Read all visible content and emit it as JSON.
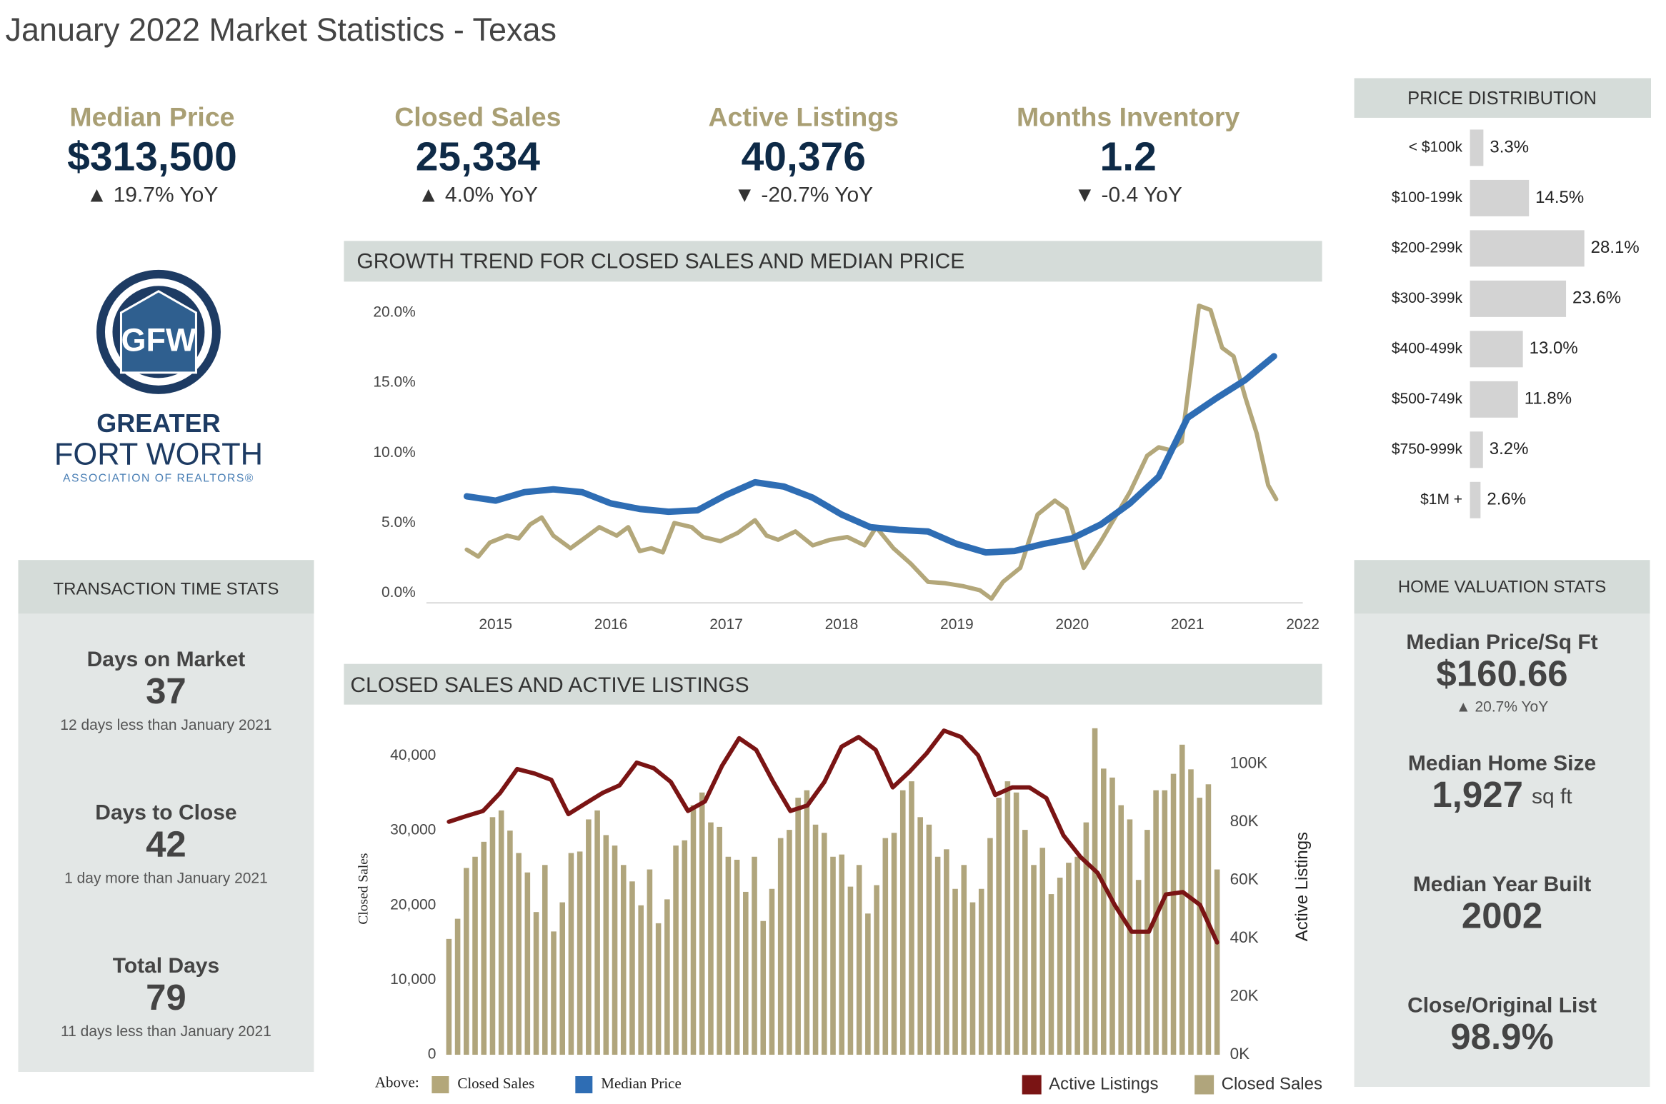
{
  "title": "January 2022 Market Statistics - Texas",
  "kpis": [
    {
      "label": "Median Price",
      "value": "$313,500",
      "change": "▲ 19.7% YoY"
    },
    {
      "label": "Closed Sales",
      "value": "25,334",
      "change": "▲ 4.0% YoY"
    },
    {
      "label": "Active Listings",
      "value": "40,376",
      "change": "▼ -20.7% YoY"
    },
    {
      "label": "Months Inventory",
      "value": "1.2",
      "change": "▼ -0.4 YoY"
    }
  ],
  "logo": {
    "mark": "GFW",
    "line1": "GREATER",
    "line2": "FORT WORTH",
    "line3": "ASSOCIATION OF REALTORS®"
  },
  "price_distribution": {
    "title": "PRICE DISTRIBUTION",
    "color": "#d3d3d3",
    "categories": [
      "< $100k",
      "$100-199k",
      "$200-299k",
      "$300-399k",
      "$400-499k",
      "$500-749k",
      "$750-999k",
      "$1M +"
    ],
    "values": [
      3.3,
      14.5,
      28.1,
      23.6,
      13.0,
      11.8,
      3.2,
      2.6
    ],
    "value_labels": [
      "3.3%",
      "14.5%",
      "28.1%",
      "23.6%",
      "13.0%",
      "11.8%",
      "3.2%",
      "2.6%"
    ]
  },
  "transaction_time_stats": {
    "title": "TRANSACTION TIME STATS",
    "items": [
      {
        "label": "Days on Market",
        "value": "37",
        "note": "12 days less than January 2021"
      },
      {
        "label": "Days to Close",
        "value": "42",
        "note": "1 day more than January 2021"
      },
      {
        "label": "Total Days",
        "value": "79",
        "note": "11 days less than January 2021"
      }
    ]
  },
  "home_valuation_stats": {
    "title": "HOME VALUATION STATS",
    "items": [
      {
        "label": "Median Price/Sq Ft",
        "value": "$160.66",
        "note": "▲ 20.7% YoY"
      },
      {
        "label": "Median Home Size",
        "value": "1,927",
        "unit": "sq ft"
      },
      {
        "label": "Median Year Built",
        "value": "2002"
      },
      {
        "label": "Close/Original List",
        "value": "98.9%"
      }
    ]
  },
  "chart_data": [
    {
      "type": "line",
      "title": "GROWTH TREND FOR CLOSED SALES AND MEDIAN PRICE",
      "legend_label": "Above:",
      "xlim": [
        2014.4,
        2022
      ],
      "xticks": [
        2015,
        2016,
        2017,
        2018,
        2019,
        2020,
        2021,
        2022
      ],
      "ylim": [
        -0.7,
        21
      ],
      "yticks": [
        {
          "value": 0,
          "label": "0.0%"
        },
        {
          "value": 5,
          "label": "5.0%"
        },
        {
          "value": 10,
          "label": "10.0%"
        },
        {
          "value": 15,
          "label": "15.0%"
        },
        {
          "value": 20,
          "label": "20.0%"
        }
      ],
      "series": [
        {
          "name": "Closed Sales",
          "color": "#b3a77a",
          "x": [
            2014.75,
            2014.85,
            2014.95,
            2015.1,
            2015.2,
            2015.3,
            2015.4,
            2015.5,
            2015.65,
            2015.8,
            2015.9,
            2016.05,
            2016.15,
            2016.25,
            2016.35,
            2016.45,
            2016.55,
            2016.7,
            2016.8,
            2016.95,
            2017.1,
            2017.25,
            2017.35,
            2017.45,
            2017.6,
            2017.75,
            2017.9,
            2018.05,
            2018.2,
            2018.3,
            2018.45,
            2018.6,
            2018.75,
            2018.9,
            2019.05,
            2019.2,
            2019.3,
            2019.4,
            2019.55,
            2019.7,
            2019.85,
            2019.95,
            2020.1,
            2020.25,
            2020.5,
            2020.65,
            2020.75,
            2020.85,
            2020.95,
            2021.1,
            2021.2,
            2021.3,
            2021.4,
            2021.5,
            2021.6,
            2021.7,
            2021.77
          ],
          "values": [
            3.1,
            2.6,
            3.6,
            4.1,
            3.9,
            4.9,
            5.4,
            4.1,
            3.2,
            4.1,
            4.7,
            4.1,
            4.7,
            3.0,
            3.2,
            2.9,
            5.0,
            4.7,
            4.0,
            3.7,
            4.3,
            5.2,
            4.1,
            3.8,
            4.4,
            3.4,
            3.8,
            4.0,
            3.4,
            4.7,
            3.2,
            2.1,
            0.8,
            0.7,
            0.5,
            0.2,
            -0.4,
            0.8,
            1.8,
            5.6,
            6.6,
            6.0,
            1.8,
            3.7,
            7.2,
            9.8,
            10.4,
            10.2,
            10.8,
            20.5,
            20.2,
            17.5,
            16.9,
            14.0,
            11.4,
            7.7,
            6.7
          ]
        },
        {
          "name": "Median Price",
          "color": "#2e6db4",
          "x": [
            2014.75,
            2015.0,
            2015.25,
            2015.5,
            2015.75,
            2016.0,
            2016.25,
            2016.5,
            2016.75,
            2017.0,
            2017.25,
            2017.5,
            2017.75,
            2018.0,
            2018.25,
            2018.5,
            2018.75,
            2019.0,
            2019.25,
            2019.5,
            2019.75,
            2020.0,
            2020.25,
            2020.5,
            2020.75,
            2021.0,
            2021.25,
            2021.5,
            2021.75
          ],
          "values": [
            6.9,
            6.6,
            7.2,
            7.4,
            7.2,
            6.4,
            6.0,
            5.8,
            5.9,
            7.0,
            7.9,
            7.6,
            6.8,
            5.6,
            4.7,
            4.5,
            4.4,
            3.5,
            2.9,
            3.0,
            3.5,
            3.9,
            4.9,
            6.4,
            8.3,
            12.5,
            13.9,
            15.2,
            16.9
          ]
        }
      ]
    },
    {
      "type": "bar-line",
      "title": "CLOSED SALES AND ACTIVE LISTINGS",
      "ylabel": "Closed Sales",
      "y2label": "Active Listings",
      "ylim": [
        0,
        44000
      ],
      "yticks": [
        {
          "value": 0,
          "label": "0"
        },
        {
          "value": 10000,
          "label": "10,000"
        },
        {
          "value": 20000,
          "label": "20,000"
        },
        {
          "value": 30000,
          "label": "30,000"
        },
        {
          "value": 40000,
          "label": "40,000"
        }
      ],
      "y2lim": [
        0,
        113000
      ],
      "y2ticks": [
        {
          "value": 0,
          "label": "0K"
        },
        {
          "value": 20000,
          "label": "20K"
        },
        {
          "value": 40000,
          "label": "40K"
        },
        {
          "value": 60000,
          "label": "60K"
        },
        {
          "value": 80000,
          "label": "80K"
        },
        {
          "value": 100000,
          "label": "100K"
        }
      ],
      "series": [
        {
          "name": "Active Listings",
          "color": "#7a1414",
          "axis": "y2",
          "values": [
            80100,
            82000,
            83800,
            90000,
            98200,
            96700,
            94500,
            82700,
            86400,
            90000,
            92600,
            100400,
            98500,
            93800,
            83800,
            87100,
            99300,
            108800,
            104800,
            93800,
            83800,
            85700,
            93800,
            105900,
            109200,
            104800,
            91900,
            97400,
            103700,
            111400,
            109200,
            102900,
            89300,
            91900,
            91900,
            88200,
            75400,
            68000,
            62500,
            51500,
            42300,
            42300,
            55100,
            55900,
            51500,
            38600
          ]
        },
        {
          "name": "Closed Sales",
          "color": "#b0a57c",
          "values": [
            15500,
            18200,
            25000,
            26500,
            28500,
            31800,
            32700,
            30000,
            27000,
            24400,
            19100,
            25400,
            16500,
            20400,
            27000,
            27200,
            31500,
            32700,
            29400,
            28000,
            25400,
            23200,
            20000,
            24800,
            17600,
            20800,
            28000,
            28700,
            33400,
            35100,
            31100,
            30500,
            26500,
            26100,
            21800,
            26500,
            17900,
            22200,
            29000,
            30100,
            34400,
            35400,
            30800,
            29700,
            26500,
            26800,
            22500,
            25400,
            18900,
            22700,
            29000,
            29700,
            35400,
            36600,
            31800,
            30800,
            26500,
            27500,
            22200,
            25400,
            20400,
            22200,
            29000,
            34400,
            36600,
            35100,
            30100,
            25400,
            27700,
            21500,
            23700,
            25700,
            26500,
            31100,
            43700,
            38300,
            37100,
            33400,
            31500,
            23400,
            30100,
            35400,
            35400,
            37600,
            41500,
            38200,
            34400,
            36200,
            24800
          ]
        }
      ]
    }
  ]
}
